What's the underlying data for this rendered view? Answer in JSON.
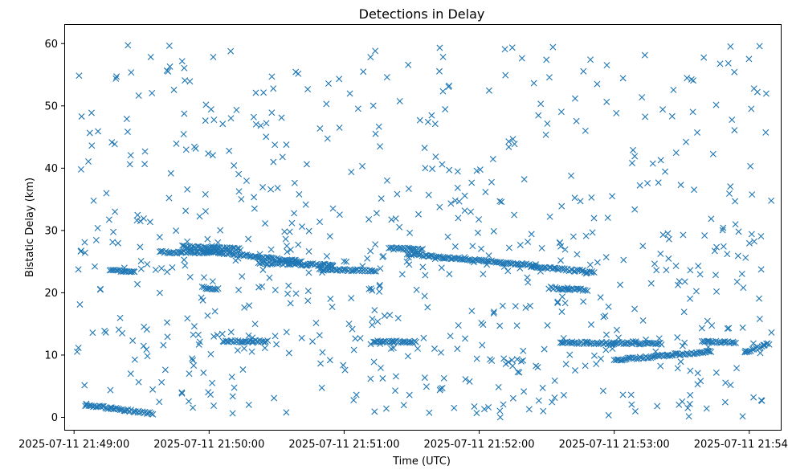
{
  "chart_data": {
    "type": "scatter",
    "title": "Detections in Delay",
    "xlabel": "Time (UTC)",
    "ylabel": "Bistatic Delay (km)",
    "marker": "x",
    "color": "#1f77b4",
    "grid": false,
    "legend": "none",
    "x_range": [
      "2025-07-11 21:48:56",
      "2025-07-11 21:54:14"
    ],
    "xlim_s": [
      -4,
      314
    ],
    "ylim": [
      -2,
      63
    ],
    "x_ticks": [
      {
        "label": "2025-07-11 21:49:00",
        "s": 0
      },
      {
        "label": "2025-07-11 21:50:00",
        "s": 60
      },
      {
        "label": "2025-07-11 21:51:00",
        "s": 120
      },
      {
        "label": "2025-07-11 21:52:00",
        "s": 180
      },
      {
        "label": "2025-07-11 21:53:00",
        "s": 240
      },
      {
        "label": "2025-07-11 21:54:00",
        "s": 300
      }
    ],
    "y_ticks": [
      0,
      10,
      20,
      30,
      40,
      50,
      60
    ],
    "tracks_note_hidden": false,
    "tracks": [
      {
        "name": "",
        "t": [
          5,
          35
        ],
        "y": [
          2.0,
          0.6
        ]
      },
      {
        "name": "",
        "t": [
          16,
          27
        ],
        "y": [
          23.5,
          23.5
        ]
      },
      {
        "name": "",
        "t": [
          38,
          66
        ],
        "y": [
          26.5,
          26.5
        ]
      },
      {
        "name": "",
        "t": [
          48,
          74
        ],
        "y": [
          27.4,
          27.0
        ]
      },
      {
        "name": "",
        "t": [
          56,
          101
        ],
        "y": [
          26.8,
          25.0
        ]
      },
      {
        "name": "",
        "t": [
          82,
          115
        ],
        "y": [
          24.8,
          24.4
        ]
      },
      {
        "name": "",
        "t": [
          57,
          64
        ],
        "y": [
          20.8,
          20.6
        ]
      },
      {
        "name": "",
        "t": [
          66,
          86
        ],
        "y": [
          12.2,
          12.2
        ]
      },
      {
        "name": "",
        "t": [
          109,
          134
        ],
        "y": [
          23.7,
          23.6
        ]
      },
      {
        "name": "",
        "t": [
          133,
          152
        ],
        "y": [
          12.2,
          12.1
        ]
      },
      {
        "name": "",
        "t": [
          140,
          155
        ],
        "y": [
          27.1,
          27.0
        ]
      },
      {
        "name": "",
        "t": [
          148,
          205
        ],
        "y": [
          26.2,
          24.4
        ]
      },
      {
        "name": "",
        "t": [
          203,
          231
        ],
        "y": [
          24.2,
          23.3
        ]
      },
      {
        "name": "",
        "t": [
          211,
          228
        ],
        "y": [
          20.8,
          20.4
        ]
      },
      {
        "name": "",
        "t": [
          216,
          240
        ],
        "y": [
          12.0,
          11.9
        ]
      },
      {
        "name": "",
        "t": [
          240,
          261
        ],
        "y": [
          12.0,
          11.8
        ]
      },
      {
        "name": "",
        "t": [
          240,
          283
        ],
        "y": [
          9.2,
          10.6
        ]
      },
      {
        "name": "",
        "t": [
          279,
          294
        ],
        "y": [
          12.2,
          12.0
        ]
      },
      {
        "name": "",
        "t": [
          298,
          309
        ],
        "y": [
          10.5,
          11.8
        ]
      }
    ]
  }
}
